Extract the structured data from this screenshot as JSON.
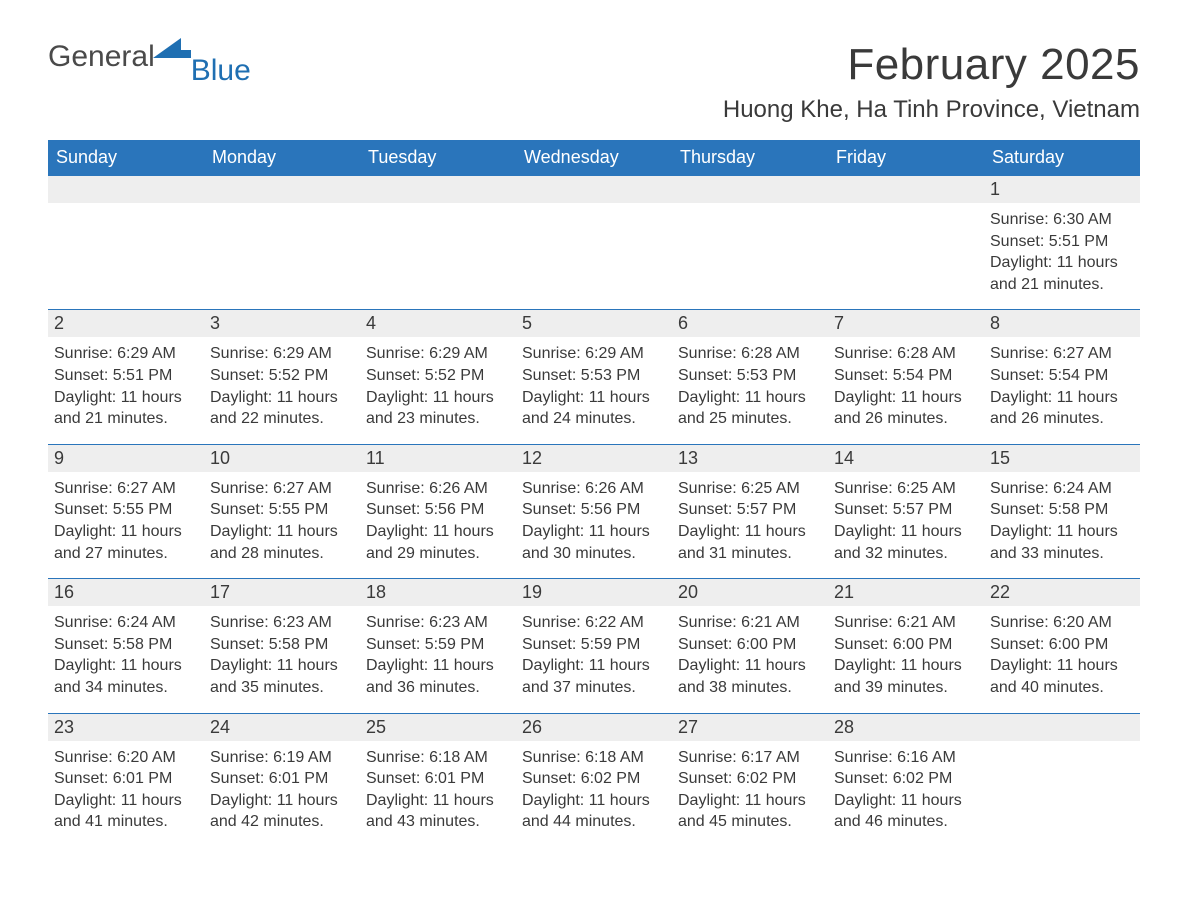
{
  "logo": {
    "text1": "General",
    "text2": "Blue",
    "mark_color": "#1f6fb2"
  },
  "header": {
    "month_title": "February 2025",
    "location": "Huong Khe, Ha Tinh Province, Vietnam"
  },
  "colors": {
    "header_bg": "#2a75bb",
    "header_text": "#ffffff",
    "daynum_bg": "#eeeeee",
    "text": "#3a3a3a",
    "week_divider": "#2a75bb",
    "page_bg": "#ffffff"
  },
  "typography": {
    "month_title_fontsize": 44,
    "location_fontsize": 24,
    "dow_fontsize": 18,
    "daynum_fontsize": 18,
    "body_fontsize": 16
  },
  "days_of_week": [
    "Sunday",
    "Monday",
    "Tuesday",
    "Wednesday",
    "Thursday",
    "Friday",
    "Saturday"
  ],
  "weeks": [
    [
      null,
      null,
      null,
      null,
      null,
      null,
      {
        "n": "1",
        "sunrise": "Sunrise: 6:30 AM",
        "sunset": "Sunset: 5:51 PM",
        "daylight": "Daylight: 11 hours and 21 minutes."
      }
    ],
    [
      {
        "n": "2",
        "sunrise": "Sunrise: 6:29 AM",
        "sunset": "Sunset: 5:51 PM",
        "daylight": "Daylight: 11 hours and 21 minutes."
      },
      {
        "n": "3",
        "sunrise": "Sunrise: 6:29 AM",
        "sunset": "Sunset: 5:52 PM",
        "daylight": "Daylight: 11 hours and 22 minutes."
      },
      {
        "n": "4",
        "sunrise": "Sunrise: 6:29 AM",
        "sunset": "Sunset: 5:52 PM",
        "daylight": "Daylight: 11 hours and 23 minutes."
      },
      {
        "n": "5",
        "sunrise": "Sunrise: 6:29 AM",
        "sunset": "Sunset: 5:53 PM",
        "daylight": "Daylight: 11 hours and 24 minutes."
      },
      {
        "n": "6",
        "sunrise": "Sunrise: 6:28 AM",
        "sunset": "Sunset: 5:53 PM",
        "daylight": "Daylight: 11 hours and 25 minutes."
      },
      {
        "n": "7",
        "sunrise": "Sunrise: 6:28 AM",
        "sunset": "Sunset: 5:54 PM",
        "daylight": "Daylight: 11 hours and 26 minutes."
      },
      {
        "n": "8",
        "sunrise": "Sunrise: 6:27 AM",
        "sunset": "Sunset: 5:54 PM",
        "daylight": "Daylight: 11 hours and 26 minutes."
      }
    ],
    [
      {
        "n": "9",
        "sunrise": "Sunrise: 6:27 AM",
        "sunset": "Sunset: 5:55 PM",
        "daylight": "Daylight: 11 hours and 27 minutes."
      },
      {
        "n": "10",
        "sunrise": "Sunrise: 6:27 AM",
        "sunset": "Sunset: 5:55 PM",
        "daylight": "Daylight: 11 hours and 28 minutes."
      },
      {
        "n": "11",
        "sunrise": "Sunrise: 6:26 AM",
        "sunset": "Sunset: 5:56 PM",
        "daylight": "Daylight: 11 hours and 29 minutes."
      },
      {
        "n": "12",
        "sunrise": "Sunrise: 6:26 AM",
        "sunset": "Sunset: 5:56 PM",
        "daylight": "Daylight: 11 hours and 30 minutes."
      },
      {
        "n": "13",
        "sunrise": "Sunrise: 6:25 AM",
        "sunset": "Sunset: 5:57 PM",
        "daylight": "Daylight: 11 hours and 31 minutes."
      },
      {
        "n": "14",
        "sunrise": "Sunrise: 6:25 AM",
        "sunset": "Sunset: 5:57 PM",
        "daylight": "Daylight: 11 hours and 32 minutes."
      },
      {
        "n": "15",
        "sunrise": "Sunrise: 6:24 AM",
        "sunset": "Sunset: 5:58 PM",
        "daylight": "Daylight: 11 hours and 33 minutes."
      }
    ],
    [
      {
        "n": "16",
        "sunrise": "Sunrise: 6:24 AM",
        "sunset": "Sunset: 5:58 PM",
        "daylight": "Daylight: 11 hours and 34 minutes."
      },
      {
        "n": "17",
        "sunrise": "Sunrise: 6:23 AM",
        "sunset": "Sunset: 5:58 PM",
        "daylight": "Daylight: 11 hours and 35 minutes."
      },
      {
        "n": "18",
        "sunrise": "Sunrise: 6:23 AM",
        "sunset": "Sunset: 5:59 PM",
        "daylight": "Daylight: 11 hours and 36 minutes."
      },
      {
        "n": "19",
        "sunrise": "Sunrise: 6:22 AM",
        "sunset": "Sunset: 5:59 PM",
        "daylight": "Daylight: 11 hours and 37 minutes."
      },
      {
        "n": "20",
        "sunrise": "Sunrise: 6:21 AM",
        "sunset": "Sunset: 6:00 PM",
        "daylight": "Daylight: 11 hours and 38 minutes."
      },
      {
        "n": "21",
        "sunrise": "Sunrise: 6:21 AM",
        "sunset": "Sunset: 6:00 PM",
        "daylight": "Daylight: 11 hours and 39 minutes."
      },
      {
        "n": "22",
        "sunrise": "Sunrise: 6:20 AM",
        "sunset": "Sunset: 6:00 PM",
        "daylight": "Daylight: 11 hours and 40 minutes."
      }
    ],
    [
      {
        "n": "23",
        "sunrise": "Sunrise: 6:20 AM",
        "sunset": "Sunset: 6:01 PM",
        "daylight": "Daylight: 11 hours and 41 minutes."
      },
      {
        "n": "24",
        "sunrise": "Sunrise: 6:19 AM",
        "sunset": "Sunset: 6:01 PM",
        "daylight": "Daylight: 11 hours and 42 minutes."
      },
      {
        "n": "25",
        "sunrise": "Sunrise: 6:18 AM",
        "sunset": "Sunset: 6:01 PM",
        "daylight": "Daylight: 11 hours and 43 minutes."
      },
      {
        "n": "26",
        "sunrise": "Sunrise: 6:18 AM",
        "sunset": "Sunset: 6:02 PM",
        "daylight": "Daylight: 11 hours and 44 minutes."
      },
      {
        "n": "27",
        "sunrise": "Sunrise: 6:17 AM",
        "sunset": "Sunset: 6:02 PM",
        "daylight": "Daylight: 11 hours and 45 minutes."
      },
      {
        "n": "28",
        "sunrise": "Sunrise: 6:16 AM",
        "sunset": "Sunset: 6:02 PM",
        "daylight": "Daylight: 11 hours and 46 minutes."
      },
      null
    ]
  ]
}
